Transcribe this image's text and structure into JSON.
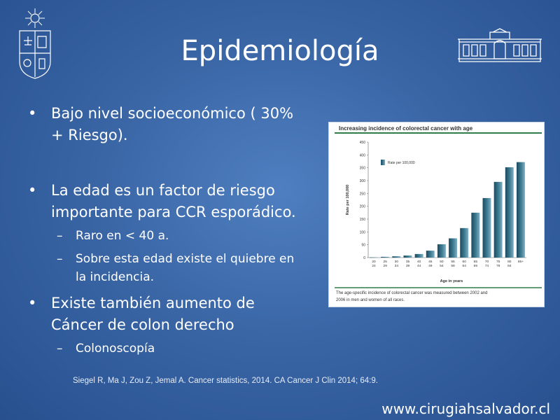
{
  "slide": {
    "title": "Epidemiología",
    "bullets": [
      {
        "lines": [
          "Bajo nivel socioeconómico ( 30%",
          "+ Riesgo)."
        ]
      },
      {
        "lines": [
          "La edad es un factor de riesgo",
          "importante para CCR esporádico."
        ],
        "sub": [
          {
            "lines": [
              "Raro en < 40 a."
            ]
          },
          {
            "lines": [
              "Sobre esta edad existe el quiebre en",
              "la incidencia."
            ]
          }
        ]
      },
      {
        "lines": [
          "Existe también aumento de",
          "Cáncer de colon derecho"
        ],
        "sub": [
          {
            "lines": [
              "Colonoscopía"
            ]
          }
        ]
      }
    ],
    "citation": "Siegel R, Ma J, Zou Z, Jemal A. Cancer statistics, 2014. CA Cancer J Clin 2014; 64:9.",
    "footer_url": "www.cirugiahsalvador.cl"
  },
  "chart_data": {
    "type": "bar",
    "title": "Increasing incidence of colorectal cancer with age",
    "xlabel": "Age in years",
    "ylabel": "Rate per 100,000",
    "legend": "Rate per 100,000",
    "legend_position": "top-left",
    "ylim": [
      0,
      450
    ],
    "yticks": [
      0,
      50,
      100,
      150,
      200,
      250,
      300,
      350,
      400,
      450
    ],
    "categories": [
      [
        "20",
        "24"
      ],
      [
        "25",
        "29"
      ],
      [
        "30",
        "34"
      ],
      [
        "35",
        "39"
      ],
      [
        "40",
        "44"
      ],
      [
        "45",
        "49"
      ],
      [
        "50",
        "54"
      ],
      [
        "55",
        "59"
      ],
      [
        "60",
        "64"
      ],
      [
        "65",
        "69"
      ],
      [
        "70",
        "74"
      ],
      [
        "75",
        "79"
      ],
      [
        "80",
        "84"
      ],
      [
        "85+",
        ""
      ]
    ],
    "values": [
      1,
      3,
      5,
      8,
      14,
      27,
      52,
      75,
      115,
      175,
      232,
      295,
      352,
      372
    ],
    "caption": [
      "The age-specific incidence of colorectal cancer was measured between 2002 and",
      "2006 in men and women of all races."
    ],
    "colors": {
      "bar_dark": "#1c4a5e",
      "bar_light": "#7fb0c2",
      "title_rule": "#2e7d4a"
    }
  }
}
